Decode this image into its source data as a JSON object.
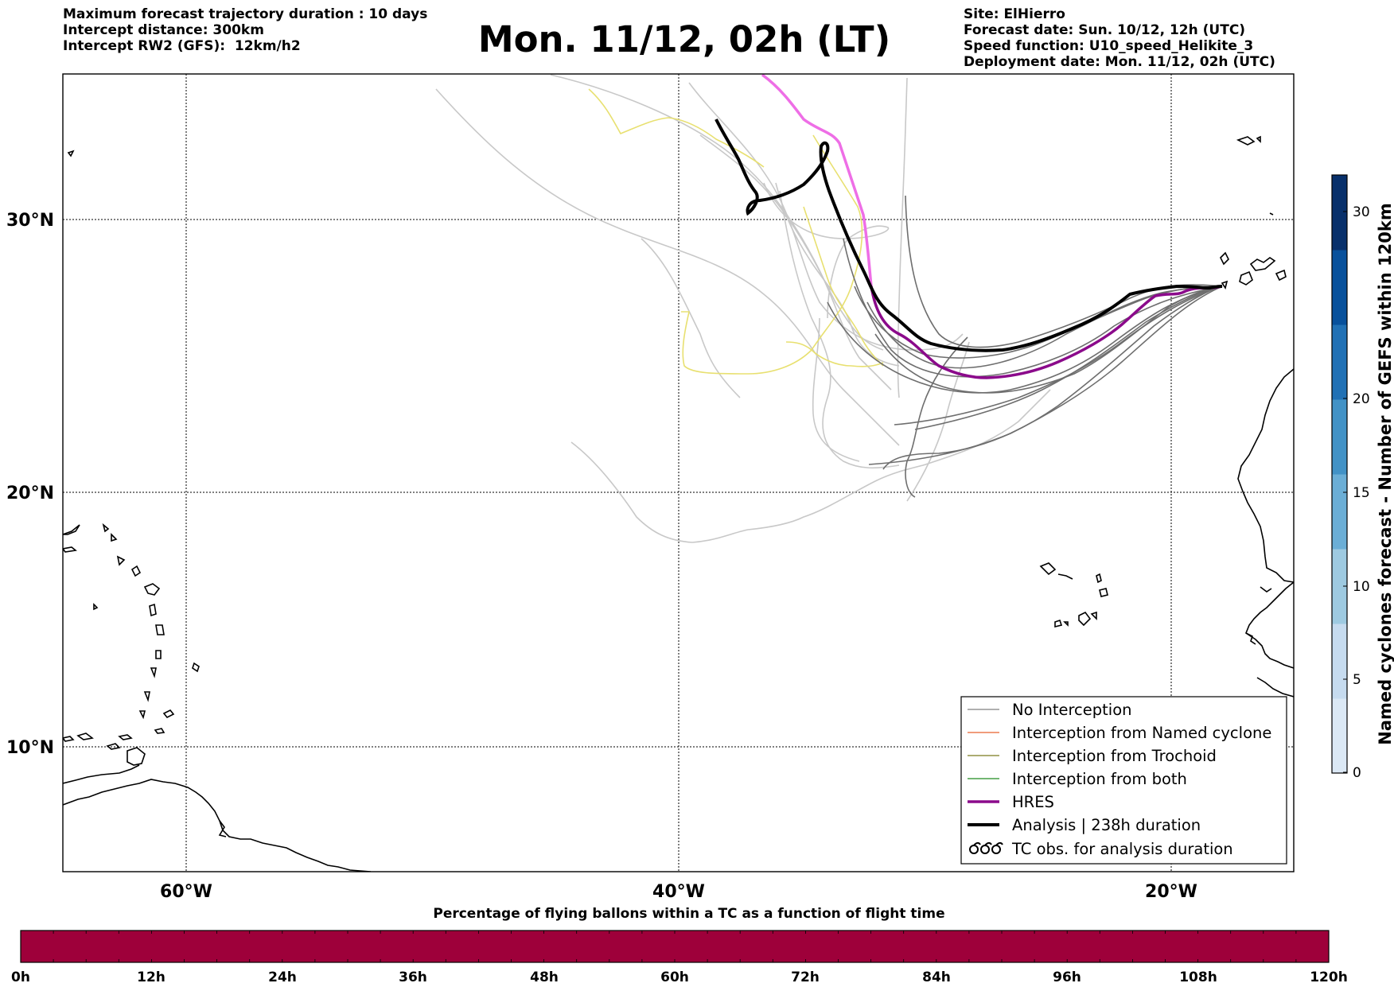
{
  "header": {
    "left_lines": [
      "Maximum forecast trajectory duration : 10 days",
      "Intercept distance: 300km",
      "Intercept RW2 (GFS):  12km/h2"
    ],
    "title": "Mon. 11/12, 02h (LT)",
    "right_lines": [
      "Site: ElHierro",
      "Forecast date: Sun. 10/12, 12h (UTC)",
      "Speed function: U10_speed_Helikite_3",
      "Deployment date: Mon. 11/12, 02h (UTC)"
    ]
  },
  "map": {
    "lat_labels": [
      "30°N",
      "20°N",
      "10°N"
    ],
    "lon_labels": [
      "60°W",
      "40°W",
      "20°W"
    ],
    "lon_range": [
      -65,
      -15
    ],
    "lat_range": [
      4.7,
      34
    ],
    "colors": {
      "no_interception": "#6e6e6e",
      "faded_track": "#c8c8c8",
      "yellow_track": "#e8e070",
      "hres": "#8b0a8b",
      "hres_early": "#ee6ee6",
      "analysis": "#000000"
    }
  },
  "legend": {
    "items": [
      {
        "label": "No Interception",
        "color": "#808080",
        "width": 1.2
      },
      {
        "label": "Interception from Named cyclone",
        "color": "#e8602c",
        "width": 1.2
      },
      {
        "label": "Interception from Trochoid",
        "color": "#7b7b1e",
        "width": 1.2
      },
      {
        "label": "Interception from both",
        "color": "#1f8a1f",
        "width": 1.2
      },
      {
        "label": "HRES",
        "color": "#8b0a8b",
        "width": 3.5
      },
      {
        "label": "Analysis | 238h duration",
        "color": "#000000",
        "width": 4
      },
      {
        "label": "TC obs. for analysis duration",
        "color": "#000000",
        "icon": "cyclone-symbols-icon"
      }
    ]
  },
  "colorbar": {
    "label": "Named cyclones forecast - Number of GEFS within 120km",
    "ticks": [
      "0",
      "5",
      "10",
      "15",
      "20",
      "30"
    ],
    "colors": [
      "#dbe8f5",
      "#c6dbef",
      "#9ecae1",
      "#6baed6",
      "#4292c6",
      "#2171b5",
      "#08519c",
      "#08306b"
    ]
  },
  "percent_bar": {
    "title": "Percentage of flying ballons within a TC as a function of flight time",
    "ticks": [
      "0h",
      "12h",
      "24h",
      "36h",
      "48h",
      "60h",
      "72h",
      "84h",
      "96h",
      "108h",
      "120h"
    ],
    "fill_color": "#9e003a",
    "value_percent": 0
  }
}
